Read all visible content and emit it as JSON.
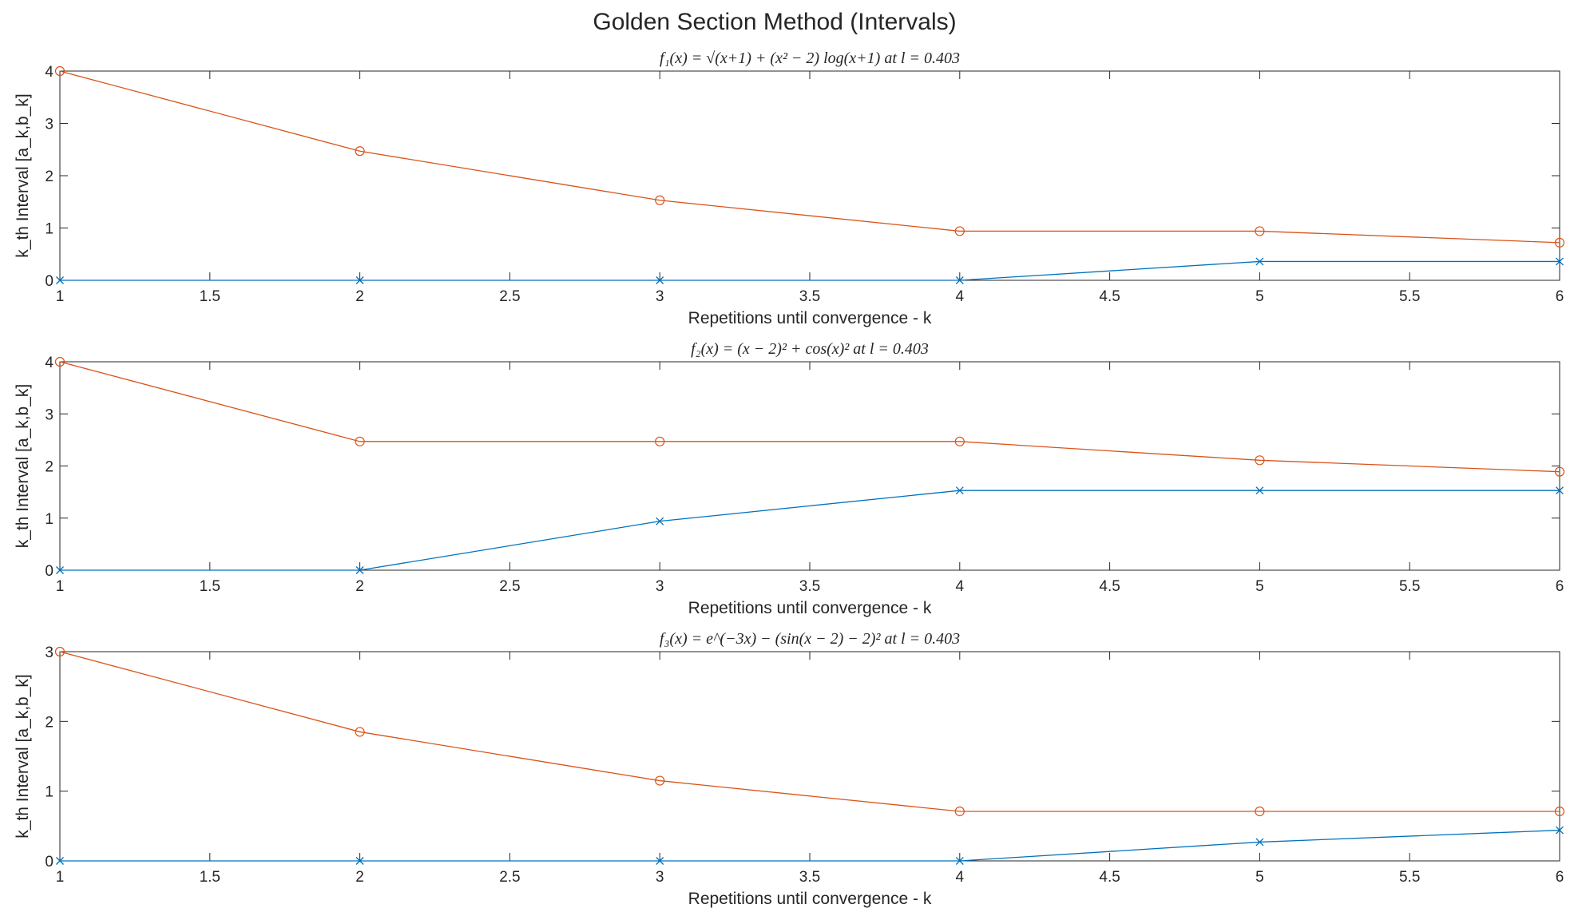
{
  "figure_title": "Golden Section Method (Intervals)",
  "colors": {
    "a_series": "#0072BD",
    "b_series": "#D95319",
    "axes": "#262626"
  },
  "chart_data": [
    {
      "type": "line",
      "title": "f₁(x) = √(x+1) + (x² − 2) log(x+1) at l = 0.403",
      "xlabel": "Repetitions until convergence - k",
      "ylabel": "k_th Interval [a_k,b_k]",
      "xlim": [
        1,
        6
      ],
      "ylim": [
        0,
        4
      ],
      "xticks": [
        "1",
        "1.5",
        "2",
        "2.5",
        "3",
        "3.5",
        "4",
        "4.5",
        "5",
        "5.5",
        "6"
      ],
      "yticks": [
        "0",
        "1",
        "2",
        "3",
        "4"
      ],
      "x": [
        1,
        2,
        3,
        4,
        5,
        6
      ],
      "series": [
        {
          "values": [
            0,
            0,
            0,
            0,
            0.36,
            0.36
          ],
          "marker": "x",
          "color": "#0072BD"
        },
        {
          "values": [
            4,
            2.47,
            1.53,
            0.94,
            0.94,
            0.72
          ],
          "marker": "o",
          "color": "#D95319"
        }
      ]
    },
    {
      "type": "line",
      "title": "f₂(x) = (x − 2)² + cos(x)² at l = 0.403",
      "xlabel": "Repetitions until convergence - k",
      "ylabel": "k_th Interval [a_k,b_k]",
      "xlim": [
        1,
        6
      ],
      "ylim": [
        0,
        4
      ],
      "xticks": [
        "1",
        "1.5",
        "2",
        "2.5",
        "3",
        "3.5",
        "4",
        "4.5",
        "5",
        "5.5",
        "6"
      ],
      "yticks": [
        "0",
        "1",
        "2",
        "3",
        "4"
      ],
      "x": [
        1,
        2,
        3,
        4,
        5,
        6
      ],
      "series": [
        {
          "values": [
            0,
            0,
            0.94,
            1.53,
            1.53,
            1.53
          ],
          "marker": "x",
          "color": "#0072BD"
        },
        {
          "values": [
            4,
            2.47,
            2.47,
            2.47,
            2.11,
            1.89
          ],
          "marker": "o",
          "color": "#D95319"
        }
      ]
    },
    {
      "type": "line",
      "title": "f₃(x) = e^(−3x) − (sin(x − 2) − 2)² at l = 0.403",
      "xlabel": "Repetitions until convergence - k",
      "ylabel": "k_th Interval [a_k,b_k]",
      "xlim": [
        1,
        6
      ],
      "ylim": [
        0,
        3
      ],
      "xticks": [
        "1",
        "1.5",
        "2",
        "2.5",
        "3",
        "3.5",
        "4",
        "4.5",
        "5",
        "5.5",
        "6"
      ],
      "yticks": [
        "0",
        "1",
        "2",
        "3"
      ],
      "x": [
        1,
        2,
        3,
        4,
        5,
        6
      ],
      "series": [
        {
          "values": [
            0,
            0,
            0,
            0,
            0.27,
            0.44
          ],
          "marker": "x",
          "color": "#0072BD"
        },
        {
          "values": [
            3,
            1.85,
            1.15,
            0.71,
            0.71,
            0.71
          ],
          "marker": "o",
          "color": "#D95319"
        }
      ]
    }
  ]
}
